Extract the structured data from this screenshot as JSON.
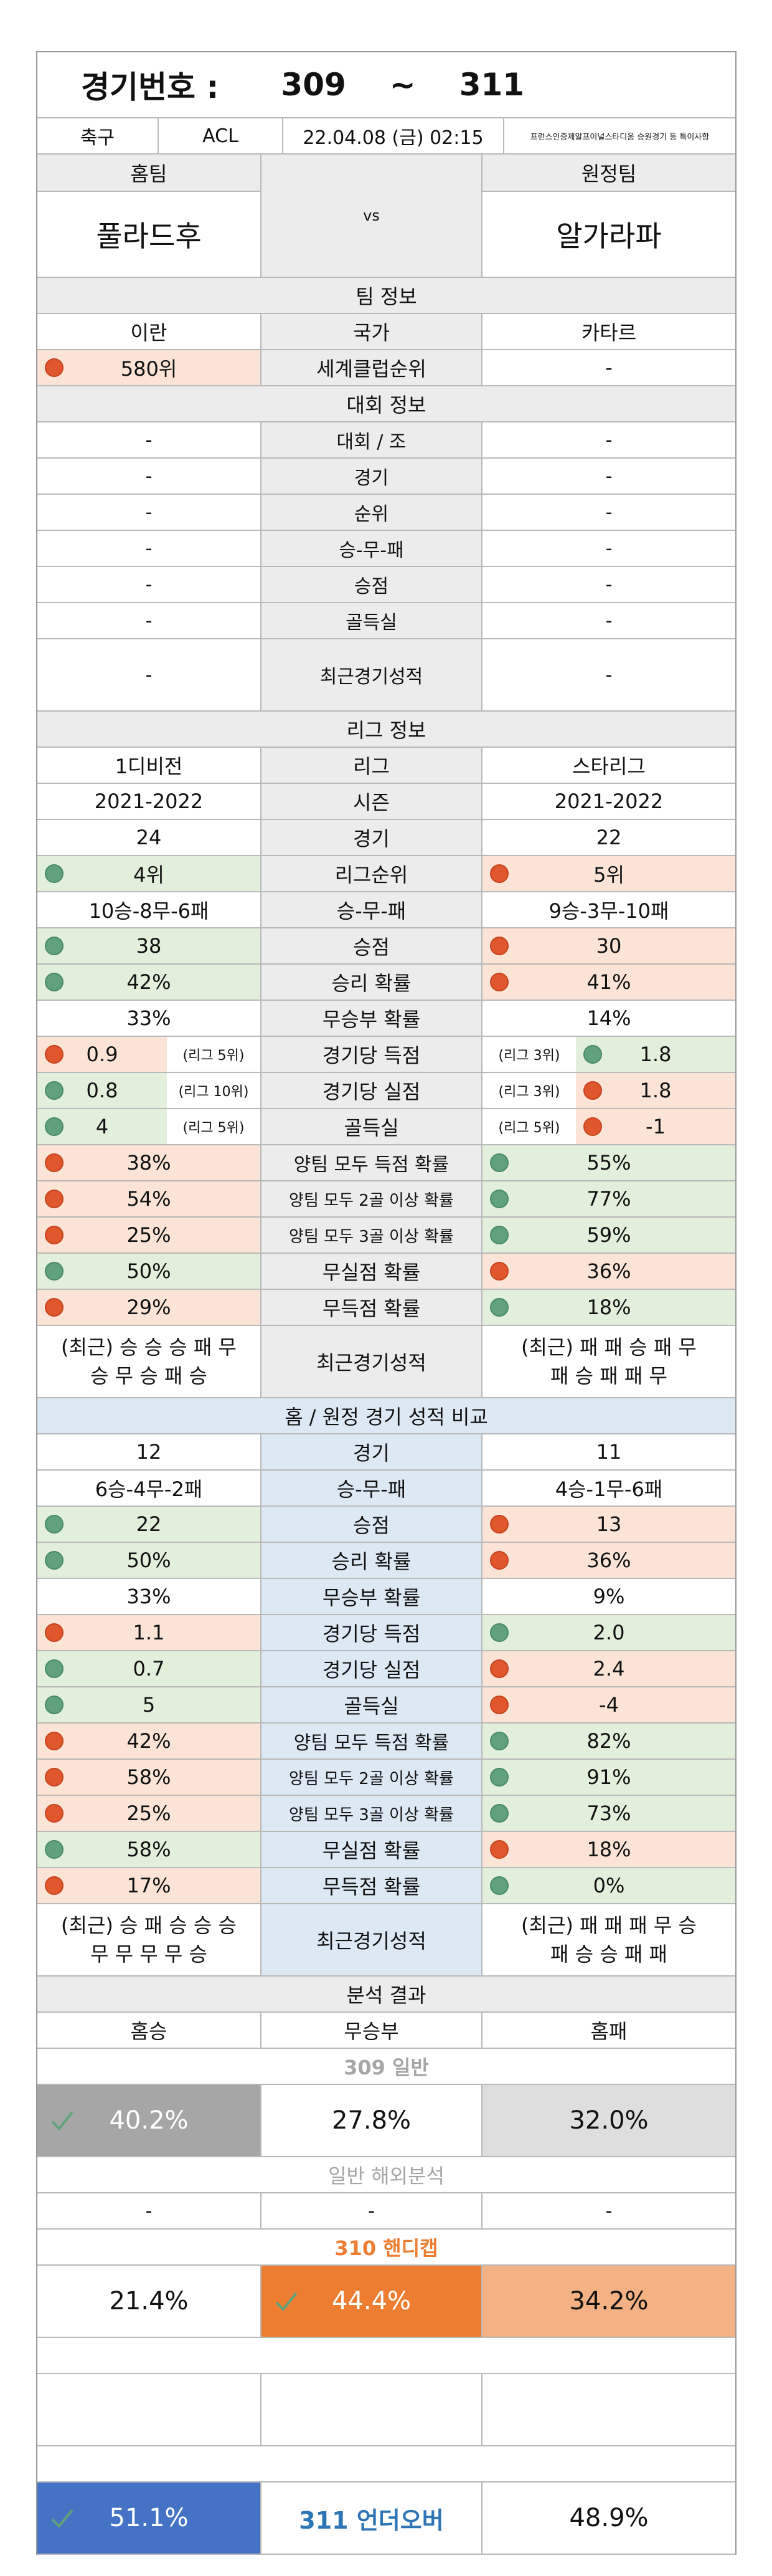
{
  "header": {
    "title_label": "경기번호 :",
    "game_from": "309",
    "tilde": "~",
    "game_to": "311"
  },
  "meta": {
    "sport": "축구",
    "league": "ACL",
    "datetime": "22.04.08 (금) 02:15",
    "notice": "프런스인증제알프이널스타디움 승원경기 등 특이사항"
  },
  "teams": {
    "home_label": "홈팀",
    "away_label": "원정팀",
    "home": "풀라드후",
    "vs": "vs",
    "away": "알가라파"
  },
  "team_info": {
    "title": "팀 정보",
    "home_country": "이란",
    "country_label": "국가",
    "away_country": "카타르",
    "home_rank": "580위",
    "rank_label": "세계클럽순위",
    "away_rank": "-"
  },
  "tournament": {
    "title": "대회 정보",
    "rows": [
      {
        "label": "대회 / 조",
        "home": "-",
        "away": "-"
      },
      {
        "label": "경기",
        "home": "-",
        "away": "-"
      },
      {
        "label": "순위",
        "home": "-",
        "away": "-"
      },
      {
        "label": "승-무-패",
        "home": "-",
        "away": "-"
      },
      {
        "label": "승점",
        "home": "-",
        "away": "-"
      },
      {
        "label": "골득실",
        "home": "-",
        "away": "-"
      },
      {
        "label": "최근경기성적",
        "home": "-",
        "away": "-"
      }
    ]
  },
  "league": {
    "title": "리그 정보",
    "league_home": "1디비전",
    "league_label": "리그",
    "league_away": "스타리그",
    "season_home": "2021-2022",
    "season_label": "시즌",
    "season_away": "2021-2022",
    "games_home": "24",
    "games_label": "경기",
    "games_away": "22",
    "rank_home": "4위",
    "rank_label": "리그순위",
    "rank_away": "5위",
    "wdl_home": "10승-8무-6패",
    "wdl_label": "승-무-패",
    "wdl_away": "9승-3무-10패",
    "pts_home": "38",
    "pts_label": "승점",
    "pts_away": "30",
    "winp_home": "42%",
    "winp_label": "승리 확률",
    "winp_away": "41%",
    "drawp_home": "33%",
    "drawp_label": "무승부 확률",
    "drawp_away": "14%",
    "gf_home": "0.9",
    "gf_home_rank": "(리그 5위)",
    "gf_label": "경기당 득점",
    "gf_away_rank": "(리그 3위)",
    "gf_away": "1.8",
    "ga_home": "0.8",
    "ga_home_rank": "(리그 10위)",
    "ga_label": "경기당 실점",
    "ga_away_rank": "(리그 3위)",
    "ga_away": "1.8",
    "gd_home": "4",
    "gd_home_rank": "(리그 5위)",
    "gd_label": "골득실",
    "gd_away_rank": "(리그 5위)",
    "gd_away": "-1",
    "btts_home": "38%",
    "btts_label": "양팀 모두 득점 확률",
    "btts_away": "55%",
    "b2_home": "54%",
    "b2_label": "양팀 모두 2골 이상 확률",
    "b2_away": "77%",
    "b3_home": "25%",
    "b3_label": "양팀 모두 3골 이상 확률",
    "b3_away": "59%",
    "cs_home": "50%",
    "cs_label": "무실점 확률",
    "cs_away": "36%",
    "ns_home": "29%",
    "ns_label": "무득점 확률",
    "ns_away": "18%",
    "recent_home_1": "(최근) 승 승 승 패 무",
    "recent_home_2": "승 무 승 패 승",
    "recent_label": "최근경기성적",
    "recent_away_1": "(최근) 패 패 승 패 무",
    "recent_away_2": "패 승 패 패 무"
  },
  "homeaway": {
    "title": "홈 / 원정 경기 성적 비교",
    "games_home": "12",
    "games_label": "경기",
    "games_away": "11",
    "wdl_home": "6승-4무-2패",
    "wdl_label": "승-무-패",
    "wdl_away": "4승-1무-6패",
    "pts_home": "22",
    "pts_label": "승점",
    "pts_away": "13",
    "winp_home": "50%",
    "winp_label": "승리 확률",
    "winp_away": "36%",
    "drawp_home": "33%",
    "drawp_label": "무승부 확률",
    "drawp_away": "9%",
    "gf_home": "1.1",
    "gf_label": "경기당 득점",
    "gf_away": "2.0",
    "ga_home": "0.7",
    "ga_label": "경기당 실점",
    "ga_away": "2.4",
    "gd_home": "5",
    "gd_label": "골득실",
    "gd_away": "-4",
    "btts_home": "42%",
    "btts_label": "양팀 모두 득점 확률",
    "btts_away": "82%",
    "b2_home": "58%",
    "b2_label": "양팀 모두 2골 이상 확률",
    "b2_away": "91%",
    "b3_home": "25%",
    "b3_label": "양팀 모두 3골 이상 확률",
    "b3_away": "73%",
    "cs_home": "58%",
    "cs_label": "무실점 확률",
    "cs_away": "18%",
    "ns_home": "17%",
    "ns_label": "무득점 확률",
    "ns_away": "0%",
    "recent_home_1": "(최근) 승 패 승 승 승",
    "recent_home_2": "무 무 무 무 승",
    "recent_label": "최근경기성적",
    "recent_away_1": "(최근) 패 패 패 무 승",
    "recent_away_2": "패 승 승 패 패"
  },
  "analysis": {
    "title": "분석 결과",
    "home_win": "홈승",
    "draw": "무승부",
    "home_loss": "홈패",
    "general_title": "309 일반",
    "general_home": "40.2%",
    "general_draw": "27.8%",
    "general_away": "32.0%",
    "overseas_title": "일반 해외분석",
    "overseas_home": "-",
    "overseas_draw": "-",
    "overseas_away": "-",
    "handicap_title": "310 핸디캡",
    "handicap_home": "21.4%",
    "handicap_draw": "44.4%",
    "handicap_away": "34.2%",
    "uo_over": "51.1%",
    "uo_title": "311 언더오버",
    "uo_under": "48.9%"
  },
  "colors": {
    "green_dot": "#5fa27c",
    "red_dot": "#e0562d",
    "green_fill": "#e2efda",
    "orange_fill": "#fbe4d6",
    "blue_header": "#dce9f5",
    "handicap_orange": "#ed7d31",
    "uo_blue": "#4472c4",
    "general_gray": "#a6a6a6"
  },
  "icons": {
    "check": "check-icon"
  }
}
